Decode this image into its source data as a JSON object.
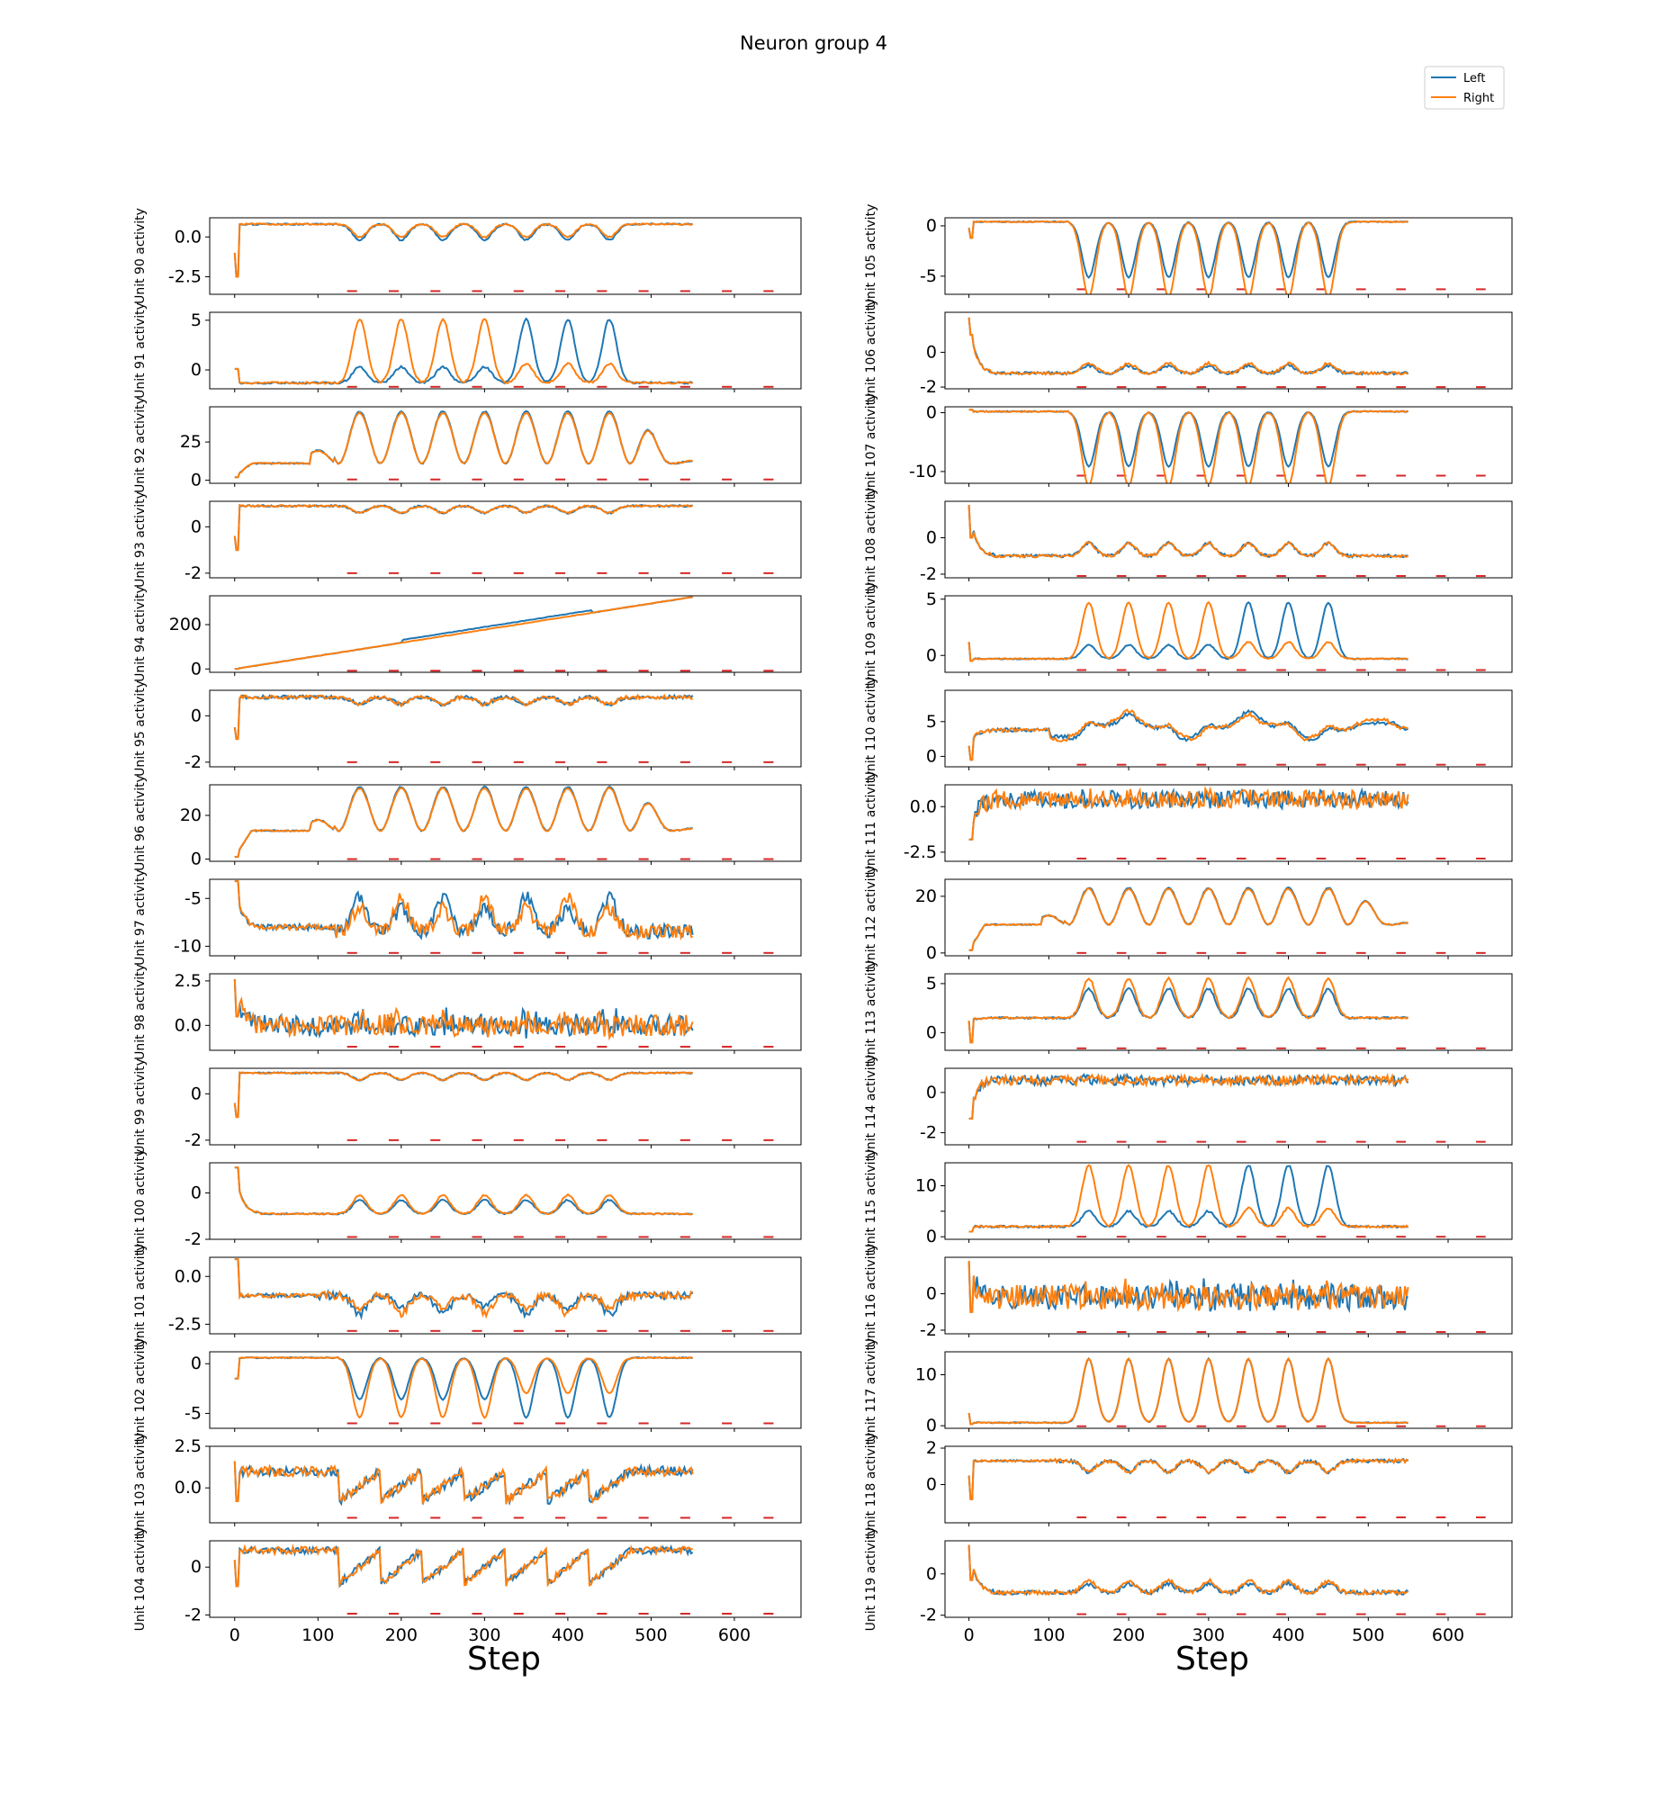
{
  "figure": {
    "title": "Neuron group 4",
    "xlabel": "Step",
    "legend": {
      "placement": "top-right",
      "entries": [
        {
          "label": "Left",
          "color": "#1f77b4"
        },
        {
          "label": "Right",
          "color": "#ff7f0e"
        }
      ]
    },
    "marker_color": "#d62728",
    "axis_color": "#000000"
  },
  "chart_data": {
    "type": "line",
    "x_ticks": [
      0,
      100,
      200,
      300,
      400,
      500,
      600
    ],
    "xlim": [
      -30,
      680
    ],
    "marker_steps": [
      135,
      185,
      235,
      285,
      335,
      385,
      435,
      485,
      535,
      585,
      635
    ],
    "series_names": [
      "Left",
      "Right"
    ],
    "panels": [
      {
        "ylabel": "Unit 90 activity",
        "ylim": [
          -3.6,
          1.2
        ],
        "yticks": [
          0.0,
          -2.5
        ],
        "ytick_labels": [
          "0.0",
          "-2.5"
        ],
        "start": -1.0,
        "dip": -2.5,
        "base": 0.8,
        "kind": "flat",
        "amp": -0.9,
        "noise": 0.05,
        "bias": "left",
        "marker_y": -3.4
      },
      {
        "ylabel": "Unit 91 activity",
        "ylim": [
          -1.9,
          5.8
        ],
        "yticks": [
          5,
          0
        ],
        "ytick_labels": [
          "5",
          "0"
        ],
        "start": 0.1,
        "dip": 0.1,
        "base": -1.3,
        "kind": "spike",
        "amp": 6.4,
        "noise": 0.1,
        "bias": "right_early_left_late",
        "marker_y": -1.7
      },
      {
        "ylabel": "Unit 92 activity",
        "ylim": [
          -2,
          48
        ],
        "yticks": [
          25,
          0
        ],
        "ytick_labels": [
          "25",
          "0"
        ],
        "start": 2,
        "dip": 2,
        "base": 11,
        "kind": "osc",
        "amp": 34,
        "noise": 0.4,
        "bias": "none",
        "marker_y": 0.5
      },
      {
        "ylabel": "Unit 93 activity",
        "ylim": [
          -2.2,
          1.1
        ],
        "yticks": [
          0,
          -2
        ],
        "ytick_labels": [
          "0",
          "-2"
        ],
        "start": -0.4,
        "dip": -1.0,
        "base": 0.9,
        "kind": "flat",
        "amp": -0.3,
        "noise": 0.04,
        "bias": "none",
        "marker_y": -2.0
      },
      {
        "ylabel": "Unit 94 activity",
        "ylim": [
          -15,
          330
        ],
        "yticks": [
          200,
          0
        ],
        "ytick_labels": [
          "200",
          "0"
        ],
        "start": 0,
        "dip": 0,
        "base": 0,
        "kind": "ramp",
        "amp": 325,
        "noise": 1.0,
        "bias": "left",
        "marker_y": -8
      },
      {
        "ylabel": "Unit 95 activity",
        "ylim": [
          -2.2,
          1.1
        ],
        "yticks": [
          0,
          -2
        ],
        "ytick_labels": [
          "0",
          "-2"
        ],
        "start": -0.5,
        "dip": -1.0,
        "base": 0.8,
        "kind": "flat",
        "amp": -0.3,
        "noise": 0.08,
        "bias": "none",
        "marker_y": -2.0
      },
      {
        "ylabel": "Unit 96 activity",
        "ylim": [
          -1,
          34
        ],
        "yticks": [
          20,
          0
        ],
        "ytick_labels": [
          "20",
          "0"
        ],
        "start": 1,
        "dip": 1,
        "base": 13,
        "kind": "osc",
        "amp": 20,
        "noise": 0.3,
        "bias": "none",
        "marker_y": 0
      },
      {
        "ylabel": "Unit 97 activity",
        "ylim": [
          -11,
          -3
        ],
        "yticks": [
          -5,
          -10
        ],
        "ytick_labels": [
          "-5",
          "-10"
        ],
        "start": -3.2,
        "dip": -3.2,
        "base": -8,
        "kind": "decay_noise",
        "amp": 3,
        "noise": 0.3,
        "bias": "mixed",
        "marker_y": -10.7
      },
      {
        "ylabel": "Unit 98 activity",
        "ylim": [
          -1.4,
          2.9
        ],
        "yticks": [
          2.5,
          0.0
        ],
        "ytick_labels": [
          "2.5",
          "0.0"
        ],
        "start": 2.6,
        "dip": 0.5,
        "base": 0.0,
        "kind": "noisy",
        "amp": 1.0,
        "noise": 0.3,
        "bias": "mixed",
        "marker_y": -1.2
      },
      {
        "ylabel": "Unit 99 activity",
        "ylim": [
          -2.2,
          1.1
        ],
        "yticks": [
          0,
          -2
        ],
        "ytick_labels": [
          "0",
          "-2"
        ],
        "start": -0.4,
        "dip": -1.0,
        "base": 0.9,
        "kind": "flat",
        "amp": -0.3,
        "noise": 0.03,
        "bias": "none",
        "marker_y": -2.0
      },
      {
        "ylabel": "Unit 100 activity",
        "ylim": [
          -2.0,
          1.3
        ],
        "yticks": [
          0,
          -2
        ],
        "ytick_labels": [
          "0",
          "-2"
        ],
        "start": 1.1,
        "dip": 1.1,
        "base": -0.9,
        "kind": "small_spike",
        "amp": 0.7,
        "noise": 0.03,
        "bias": "right",
        "marker_y": -1.9
      },
      {
        "ylabel": "Unit 101 activity",
        "ylim": [
          -3.0,
          1.0
        ],
        "yticks": [
          0.0,
          -2.5
        ],
        "ytick_labels": [
          "0.0",
          "-2.5"
        ],
        "start": 0.9,
        "dip": 0.9,
        "base": -1.0,
        "kind": "noisy_neg",
        "amp": -0.8,
        "noise": 0.2,
        "bias": "mixed",
        "marker_y": -2.85
      },
      {
        "ylabel": "Unit 102 activity",
        "ylim": [
          -6.5,
          1.2
        ],
        "yticks": [
          0,
          -5
        ],
        "ytick_labels": [
          "0",
          "-5"
        ],
        "start": -1.5,
        "dip": -1.5,
        "base": 0.6,
        "kind": "flat",
        "amp": -6.0,
        "noise": 0.05,
        "bias": "left_late",
        "marker_y": -6.0
      },
      {
        "ylabel": "Unit 103 activity",
        "ylim": [
          -2.1,
          2.5
        ],
        "yticks": [
          2.5,
          0.0
        ],
        "ytick_labels": [
          "2.5",
          "0.0"
        ],
        "start": 1.6,
        "dip": -0.8,
        "base": 1.0,
        "kind": "saw",
        "amp": -1.8,
        "noise": 0.3,
        "bias": "none",
        "marker_y": -1.8
      },
      {
        "ylabel": "Unit 104 activity",
        "ylim": [
          -2.1,
          1.1
        ],
        "yticks": [
          0,
          -2
        ],
        "ytick_labels": [
          "0",
          "-2"
        ],
        "start": 0.3,
        "dip": -0.8,
        "base": 0.7,
        "kind": "saw",
        "amp": -1.4,
        "noise": 0.15,
        "bias": "none",
        "marker_y": -1.95
      },
      {
        "ylabel": "Unit 105 activity",
        "ylim": [
          -6.8,
          0.8
        ],
        "yticks": [
          0,
          -5
        ],
        "ytick_labels": [
          "0",
          "-5"
        ],
        "start": -0.2,
        "dip": -1.2,
        "base": 0.4,
        "kind": "flat",
        "amp": -6.5,
        "noise": 0.05,
        "bias": "right",
        "marker_y": -6.3
      },
      {
        "ylabel": "Unit 106 activity",
        "ylim": [
          -2.1,
          2.3
        ],
        "yticks": [
          0,
          -2
        ],
        "ytick_labels": [
          "0",
          "-2"
        ],
        "start": 2.0,
        "dip": 1.0,
        "base": -1.2,
        "kind": "small_spike",
        "amp": 0.5,
        "noise": 0.08,
        "bias": "right",
        "marker_y": -2.0
      },
      {
        "ylabel": "Unit 107 activity",
        "ylim": [
          -12,
          1
        ],
        "yticks": [
          0,
          -10
        ],
        "ytick_labels": [
          "0",
          "-10"
        ],
        "start": 0.5,
        "dip": 0.5,
        "base": 0.2,
        "kind": "flat",
        "amp": -11.0,
        "noise": 0.1,
        "bias": "right",
        "marker_y": -10.7
      },
      {
        "ylabel": "Unit 108 activity",
        "ylim": [
          -2.2,
          2.0
        ],
        "yticks": [
          0,
          -2
        ],
        "ytick_labels": [
          "0",
          "-2"
        ],
        "start": 1.8,
        "dip": 0.0,
        "base": -1.0,
        "kind": "small_spike",
        "amp": 0.7,
        "noise": 0.08,
        "bias": "none",
        "marker_y": -2.1
      },
      {
        "ylabel": "Unit 109 activity",
        "ylim": [
          -1.5,
          5.3
        ],
        "yticks": [
          5,
          0
        ],
        "ytick_labels": [
          "5",
          "0"
        ],
        "start": 1.2,
        "dip": -0.5,
        "base": -0.3,
        "kind": "spike",
        "amp": 5.0,
        "noise": 0.05,
        "bias": "right_early_left_late",
        "marker_y": -1.3
      },
      {
        "ylabel": "Unit 110 activity",
        "ylim": [
          -1.5,
          9.5
        ],
        "yticks": [
          5,
          0
        ],
        "ytick_labels": [
          "5",
          "0"
        ],
        "start": 1.5,
        "dip": -0.5,
        "base": 3.8,
        "kind": "wavy",
        "amp": 2.5,
        "noise": 0.25,
        "bias": "mixed",
        "marker_y": -1.2
      },
      {
        "ylabel": "Unit 111 activity",
        "ylim": [
          -3.0,
          1.2
        ],
        "yticks": [
          0.0,
          -2.5
        ],
        "ytick_labels": [
          "0.0",
          "-2.5"
        ],
        "start": -1.8,
        "dip": -1.8,
        "base": 0.4,
        "kind": "noisy",
        "amp": 0.2,
        "noise": 0.25,
        "bias": "mixed",
        "marker_y": -2.85
      },
      {
        "ylabel": "Unit 112 activity",
        "ylim": [
          -1,
          26
        ],
        "yticks": [
          20,
          0
        ],
        "ytick_labels": [
          "20",
          "0"
        ],
        "start": 1,
        "dip": 1,
        "base": 10,
        "kind": "osc",
        "amp": 13,
        "noise": 0.2,
        "bias": "none",
        "marker_y": 0
      },
      {
        "ylabel": "Unit 113 activity",
        "ylim": [
          -1.8,
          6.0
        ],
        "yticks": [
          5,
          0
        ],
        "ytick_labels": [
          "5",
          "0"
        ],
        "start": 1.2,
        "dip": -1.0,
        "base": 1.5,
        "kind": "small_spike",
        "amp": 3.5,
        "noise": 0.1,
        "bias": "right",
        "marker_y": -1.6
      },
      {
        "ylabel": "Unit 114 activity",
        "ylim": [
          -2.6,
          1.2
        ],
        "yticks": [
          0,
          -2
        ],
        "ytick_labels": [
          "0",
          "-2"
        ],
        "start": -1.3,
        "dip": -1.3,
        "base": 0.6,
        "kind": "noisy",
        "amp": 0.1,
        "noise": 0.12,
        "bias": "mixed",
        "marker_y": -2.45
      },
      {
        "ylabel": "Unit 115 activity",
        "ylim": [
          -0.5,
          14.5
        ],
        "yticks": [
          10,
          5,
          0
        ],
        "ytick_labels": [
          "10",
          "",
          "0"
        ],
        "start": 1,
        "dip": 1,
        "base": 2,
        "kind": "peaks",
        "amp": 12,
        "noise": 0.2,
        "bias": "right_early_left_late",
        "marker_y": 0
      },
      {
        "ylabel": "Unit 116 activity",
        "ylim": [
          -2.2,
          2.0
        ],
        "yticks": [
          0,
          -2
        ],
        "ytick_labels": [
          "0",
          "-2"
        ],
        "start": 1.8,
        "dip": -1.0,
        "base": -0.2,
        "kind": "noisy",
        "amp": 0.8,
        "noise": 0.35,
        "bias": "mixed",
        "marker_y": -2.1
      },
      {
        "ylabel": "Unit 117 activity",
        "ylim": [
          -0.5,
          14.5
        ],
        "yticks": [
          10,
          0
        ],
        "ytick_labels": [
          "10",
          "0"
        ],
        "start": 2.5,
        "dip": 0.3,
        "base": 0.6,
        "kind": "peaks",
        "amp": 12.5,
        "noise": 0.1,
        "bias": "none",
        "marker_y": -0.1
      },
      {
        "ylabel": "Unit 118 activity",
        "ylim": [
          -2.1,
          2.1
        ],
        "yticks": [
          2,
          0
        ],
        "ytick_labels": [
          "2",
          "0"
        ],
        "start": 0.5,
        "dip": -0.8,
        "base": 1.3,
        "kind": "noisy_neg",
        "amp": -0.6,
        "noise": 0.1,
        "bias": "none",
        "marker_y": -1.8
      },
      {
        "ylabel": "Unit 119 activity",
        "ylim": [
          -2.1,
          1.6
        ],
        "yticks": [
          0,
          -2
        ],
        "ytick_labels": [
          "0",
          "-2"
        ],
        "start": 1.4,
        "dip": -0.3,
        "base": -0.9,
        "kind": "small_spike",
        "amp": 0.5,
        "noise": 0.1,
        "bias": "right",
        "marker_y": -1.95
      }
    ]
  }
}
